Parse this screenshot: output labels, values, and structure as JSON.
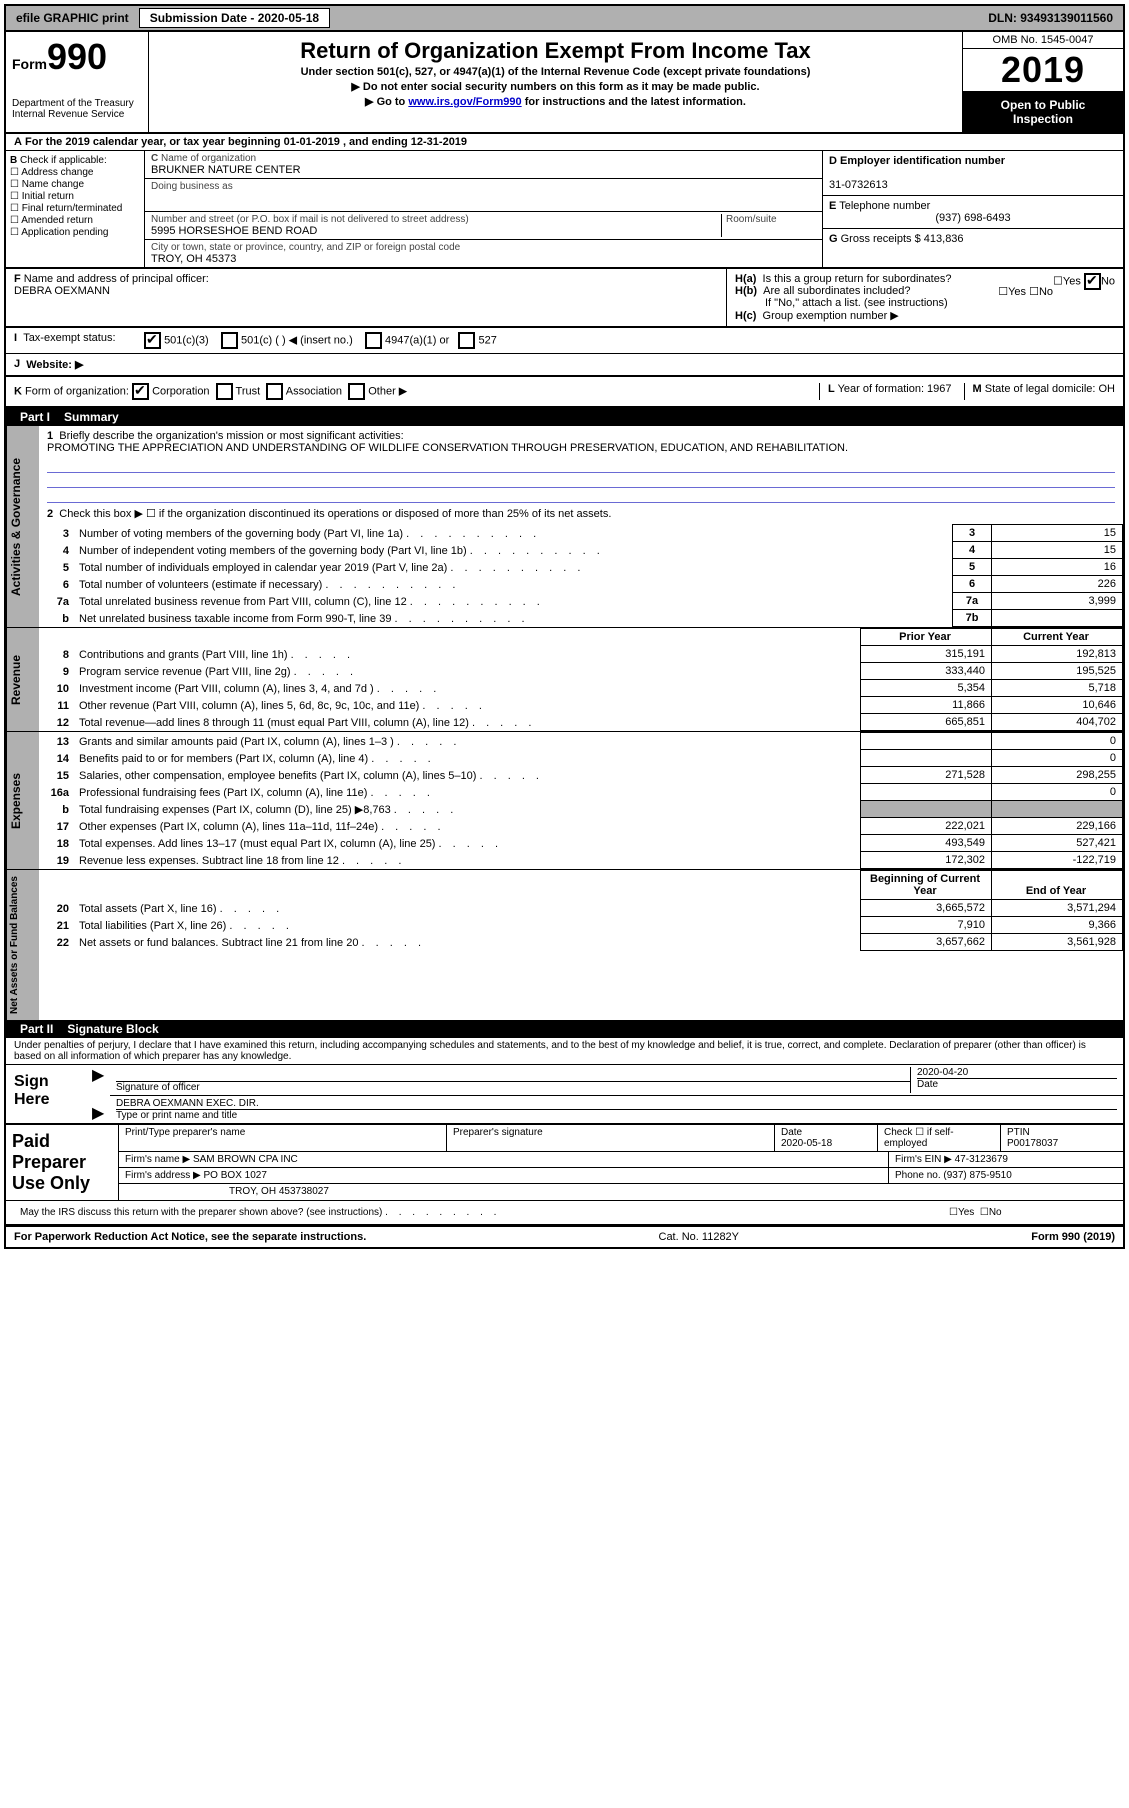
{
  "top": {
    "efile": "efile GRAPHIC print",
    "sub_label": "Submission Date - 2020-05-18",
    "dln": "DLN: 93493139011560"
  },
  "header": {
    "form_word": "Form",
    "form_no": "990",
    "dept1": "Department of the Treasury",
    "dept2": "Internal Revenue Service",
    "title": "Return of Organization Exempt From Income Tax",
    "line1": "Under section 501(c), 527, or 4947(a)(1) of the Internal Revenue Code (except private foundations)",
    "line2": "Do not enter social security numbers on this form as it may be made public.",
    "line3_pre": "Go to ",
    "line3_link": "www.irs.gov/Form990",
    "line3_post": " for instructions and the latest information.",
    "omb": "OMB No. 1545-0047",
    "year": "2019",
    "insp1": "Open to Public",
    "insp2": "Inspection"
  },
  "period": "For the 2019 calendar year, or tax year beginning 01-01-2019   , and ending 12-31-2019",
  "sectionA": "A",
  "sectionB": {
    "label": "Check if applicable:",
    "o1": "Address change",
    "o2": "Name change",
    "o3": "Initial return",
    "o4": "Final return/terminated",
    "o5": "Amended return",
    "o6": "Application pending"
  },
  "sectionC": {
    "name_lab": "Name of organization",
    "name": "BRUKNER NATURE CENTER",
    "dba_lab": "Doing business as",
    "addr_lab": "Number and street (or P.O. box if mail is not delivered to street address)",
    "addr": "5995 HORSESHOE BEND ROAD",
    "room_lab": "Room/suite",
    "city_lab": "City or town, state or province, country, and ZIP or foreign postal code",
    "city": "TROY, OH  45373",
    "c_pref": "C"
  },
  "sectionD": {
    "lab": "Employer identification number",
    "val": "31-0732613",
    "pref": "D"
  },
  "sectionE": {
    "lab": "Telephone number",
    "val": "(937) 698-6493",
    "pref": "E"
  },
  "sectionG": {
    "lab": "Gross receipts $",
    "val": "413,836",
    "pref": "G"
  },
  "sectionF": {
    "lab": "Name and address of principal officer:",
    "name": "DEBRA OEXMANN",
    "pref": "F"
  },
  "sectionH": {
    "ha": "Is this a group return for subordinates?",
    "hb": "Are all subordinates included?",
    "hb_note": "If \"No,\" attach a list. (see instructions)",
    "hc": "Group exemption number ▶",
    "yes": "Yes",
    "no": "No",
    "ha_pref": "H(a)",
    "hb_pref": "H(b)",
    "hc_pref": "H(c)"
  },
  "sectionI": {
    "lab": "Tax-exempt status:",
    "o1": "501(c)(3)",
    "o2": "501(c) (  ) ◀ (insert no.)",
    "o3": "4947(a)(1) or",
    "o4": "527",
    "pref": "I"
  },
  "sectionJ": {
    "lab": "Website: ▶",
    "pref": "J"
  },
  "sectionK": {
    "lab": "Form of organization:",
    "o1": "Corporation",
    "o2": "Trust",
    "o3": "Association",
    "o4": "Other ▶",
    "L": "Year of formation: 1967",
    "M": "State of legal domicile: OH",
    "pref": "K",
    "Lp": "L",
    "Mp": "M"
  },
  "part1": {
    "tag": "Part I",
    "title": "Summary",
    "l1": "Briefly describe the organization's mission or most significant activities:",
    "mission": "PROMOTING THE APPRECIATION AND UNDERSTANDING OF WILDLIFE CONSERVATION THROUGH PRESERVATION, EDUCATION, AND REHABILITATION.",
    "l2": "Check this box ▶ ☐  if the organization discontinued its operations or disposed of more than 25% of its net assets.",
    "vlab_ag": "Activities & Governance",
    "vlab_rev": "Revenue",
    "vlab_exp": "Expenses",
    "vlab_net": "Net Assets or Fund Balances",
    "rows_ag": [
      {
        "n": "3",
        "d": "Number of voting members of the governing body (Part VI, line 1a)",
        "box": "3",
        "v": "15"
      },
      {
        "n": "4",
        "d": "Number of independent voting members of the governing body (Part VI, line 1b)",
        "box": "4",
        "v": "15"
      },
      {
        "n": "5",
        "d": "Total number of individuals employed in calendar year 2019 (Part V, line 2a)",
        "box": "5",
        "v": "16"
      },
      {
        "n": "6",
        "d": "Total number of volunteers (estimate if necessary)",
        "box": "6",
        "v": "226"
      },
      {
        "n": "7a",
        "d": "Total unrelated business revenue from Part VIII, column (C), line 12",
        "box": "7a",
        "v": "3,999"
      },
      {
        "n": "b",
        "d": "Net unrelated business taxable income from Form 990-T, line 39",
        "box": "7b",
        "v": ""
      }
    ],
    "py": "Prior Year",
    "cy": "Current Year",
    "rows_rev": [
      {
        "n": "8",
        "d": "Contributions and grants (Part VIII, line 1h)",
        "py": "315,191",
        "cy": "192,813"
      },
      {
        "n": "9",
        "d": "Program service revenue (Part VIII, line 2g)",
        "py": "333,440",
        "cy": "195,525"
      },
      {
        "n": "10",
        "d": "Investment income (Part VIII, column (A), lines 3, 4, and 7d )",
        "py": "5,354",
        "cy": "5,718"
      },
      {
        "n": "11",
        "d": "Other revenue (Part VIII, column (A), lines 5, 6d, 8c, 9c, 10c, and 11e)",
        "py": "11,866",
        "cy": "10,646"
      },
      {
        "n": "12",
        "d": "Total revenue—add lines 8 through 11 (must equal Part VIII, column (A), line 12)",
        "py": "665,851",
        "cy": "404,702"
      }
    ],
    "rows_exp": [
      {
        "n": "13",
        "d": "Grants and similar amounts paid (Part IX, column (A), lines 1–3 )",
        "py": "",
        "cy": "0"
      },
      {
        "n": "14",
        "d": "Benefits paid to or for members (Part IX, column (A), line 4)",
        "py": "",
        "cy": "0"
      },
      {
        "n": "15",
        "d": "Salaries, other compensation, employee benefits (Part IX, column (A), lines 5–10)",
        "py": "271,528",
        "cy": "298,255"
      },
      {
        "n": "16a",
        "d": "Professional fundraising fees (Part IX, column (A), line 11e)",
        "py": "",
        "cy": "0"
      },
      {
        "n": "b",
        "d": "Total fundraising expenses (Part IX, column (D), line 25) ▶8,763",
        "py": "GRAY",
        "cy": "GRAY"
      },
      {
        "n": "17",
        "d": "Other expenses (Part IX, column (A), lines 11a–11d, 11f–24e)",
        "py": "222,021",
        "cy": "229,166"
      },
      {
        "n": "18",
        "d": "Total expenses. Add lines 13–17 (must equal Part IX, column (A), line 25)",
        "py": "493,549",
        "cy": "527,421"
      },
      {
        "n": "19",
        "d": "Revenue less expenses. Subtract line 18 from line 12",
        "py": "172,302",
        "cy": "-122,719"
      }
    ],
    "boy": "Beginning of Current Year",
    "eoy": "End of Year",
    "rows_net": [
      {
        "n": "20",
        "d": "Total assets (Part X, line 16)",
        "py": "3,665,572",
        "cy": "3,571,294"
      },
      {
        "n": "21",
        "d": "Total liabilities (Part X, line 26)",
        "py": "7,910",
        "cy": "9,366"
      },
      {
        "n": "22",
        "d": "Net assets or fund balances. Subtract line 21 from line 20",
        "py": "3,657,662",
        "cy": "3,561,928"
      }
    ]
  },
  "part2": {
    "tag": "Part II",
    "title": "Signature Block",
    "decl": "Under penalties of perjury, I declare that I have examined this return, including accompanying schedules and statements, and to the best of my knowledge and belief, it is true, correct, and complete. Declaration of preparer (other than officer) is based on all information of which preparer has any knowledge.",
    "sign_here": "Sign Here",
    "sig_of_officer": "Signature of officer",
    "date_lab": "Date",
    "sig_date": "2020-04-20",
    "officer_name": "DEBRA OEXMANN  EXEC. DIR.",
    "type_name": "Type or print name and title",
    "paid": "Paid Preparer Use Only",
    "pt_name_lab": "Print/Type preparer's name",
    "pt_sig_lab": "Preparer's signature",
    "pt_date_lab": "Date",
    "pt_date": "2020-05-18",
    "check_self": "Check ☐ if self-employed",
    "ptin_lab": "PTIN",
    "ptin": "P00178037",
    "firm_name_lab": "Firm's name   ▶",
    "firm_name": "SAM BROWN CPA INC",
    "firm_ein_lab": "Firm's EIN ▶",
    "firm_ein": "47-3123679",
    "firm_addr_lab": "Firm's address ▶",
    "firm_addr1": "PO BOX 1027",
    "firm_addr2": "TROY, OH  453738027",
    "phone_lab": "Phone no.",
    "phone": "(937) 875-9510",
    "discuss": "May the IRS discuss this return with the preparer shown above? (see instructions)",
    "yes": "Yes",
    "no": "No"
  },
  "footer": {
    "left": "For Paperwork Reduction Act Notice, see the separate instructions.",
    "mid": "Cat. No. 11282Y",
    "right": "Form 990 (2019)"
  },
  "colors": {
    "graybar": "#b0b0b0",
    "link": "#0000cc",
    "rule": "#6a6ad4"
  }
}
